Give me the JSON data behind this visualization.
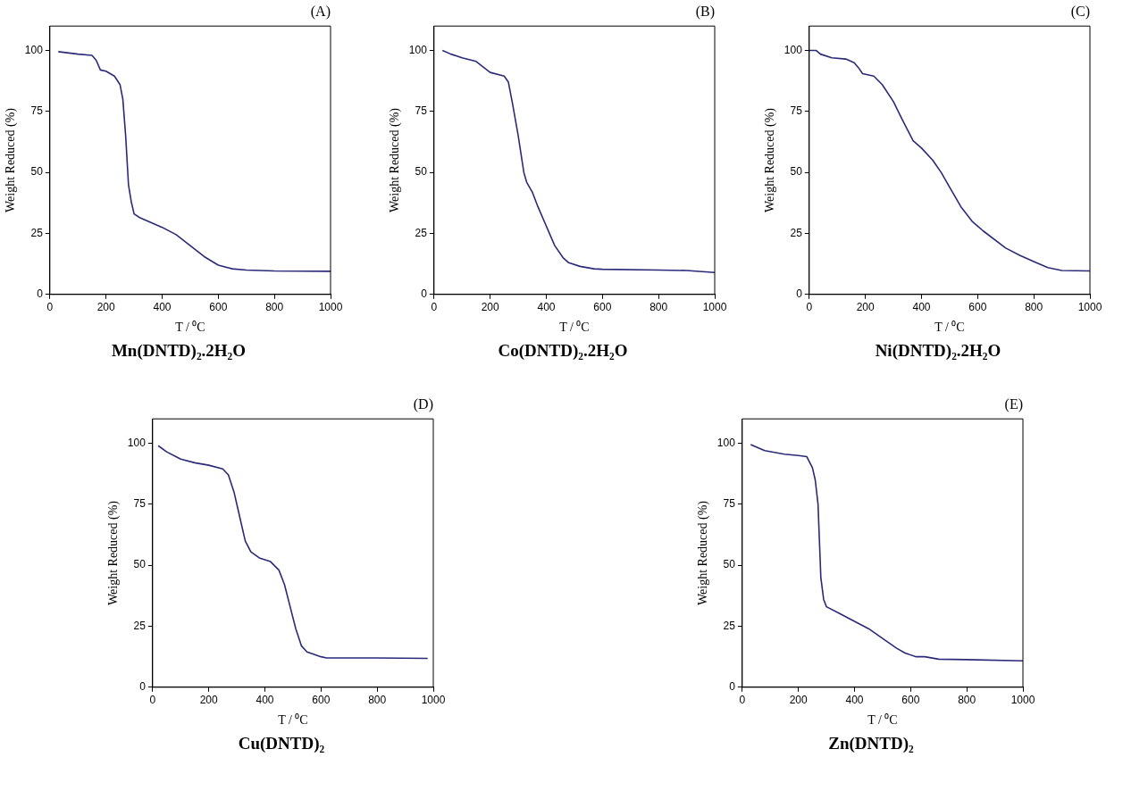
{
  "chart_data": [
    {
      "type": "line",
      "title": "(A)",
      "subtitle": "Mn(DNTD)₂.2H₂O",
      "xlabel": "T / ⁰C",
      "ylabel": "Weight Reduced (%)",
      "xlim": [
        0,
        1000
      ],
      "xticks": [
        0,
        200,
        400,
        600,
        800,
        1000
      ],
      "ylim": [
        0,
        110
      ],
      "yticks": [
        0,
        25,
        50,
        75,
        100
      ],
      "legend": false,
      "series": [
        {
          "color": "#2a2a7a",
          "x": [
            30,
            100,
            150,
            165,
            180,
            200,
            230,
            250,
            260,
            270,
            280,
            290,
            300,
            320,
            400,
            450,
            500,
            550,
            600,
            650,
            700,
            800,
            1000
          ],
          "values": [
            99.5,
            98.5,
            98,
            96,
            92,
            91.5,
            89.5,
            86,
            80,
            65,
            45,
            38,
            33,
            31.5,
            27.5,
            24.5,
            20,
            15.5,
            12,
            10.5,
            10,
            9.6,
            9.5
          ]
        }
      ]
    },
    {
      "type": "line",
      "title": "(B)",
      "subtitle": "Co(DNTD)₂.2H₂O",
      "xlabel": "T / ⁰C",
      "ylabel": "Weight Reduced (%)",
      "xlim": [
        0,
        1000
      ],
      "xticks": [
        0,
        200,
        400,
        600,
        800,
        1000
      ],
      "ylim": [
        0,
        110
      ],
      "yticks": [
        0,
        25,
        50,
        75,
        100
      ],
      "legend": false,
      "series": [
        {
          "color": "#2a2a7a",
          "x": [
            30,
            60,
            100,
            150,
            200,
            250,
            265,
            280,
            300,
            320,
            330,
            350,
            370,
            400,
            430,
            460,
            480,
            520,
            570,
            600,
            800,
            900,
            1000
          ],
          "values": [
            100,
            98.5,
            97,
            95.5,
            91,
            89.5,
            87,
            78,
            65,
            50,
            46,
            42,
            36,
            28,
            20,
            15,
            13,
            11.5,
            10.5,
            10.3,
            10,
            9.8,
            9
          ]
        }
      ]
    },
    {
      "type": "line",
      "title": "(C)",
      "subtitle": "Ni(DNTD)₂.2H₂O",
      "xlabel": "T / ⁰C",
      "ylabel": "Weight Reduced (%)",
      "xlim": [
        0,
        1000
      ],
      "xticks": [
        0,
        200,
        400,
        600,
        800,
        1000
      ],
      "ylim": [
        0,
        110
      ],
      "yticks": [
        0,
        25,
        50,
        75,
        100
      ],
      "legend": false,
      "series": [
        {
          "color": "#2a2a7a",
          "x": [
            0,
            25,
            40,
            80,
            130,
            160,
            175,
            190,
            230,
            260,
            300,
            330,
            370,
            400,
            440,
            470,
            500,
            540,
            580,
            620,
            700,
            750,
            800,
            850,
            900,
            1000
          ],
          "values": [
            100,
            100,
            98.5,
            97,
            96.5,
            95,
            93,
            90.5,
            89.5,
            86,
            79,
            72,
            63,
            60,
            55,
            50,
            44,
            36,
            30,
            26,
            19,
            16,
            13.5,
            11,
            9.8,
            9.6
          ]
        }
      ]
    },
    {
      "type": "line",
      "title": "(D)",
      "subtitle": "Cu(DNTD)₂",
      "xlabel": "T / ⁰C",
      "ylabel": "Weight Reduced (%)",
      "xlim": [
        0,
        1000
      ],
      "xticks": [
        0,
        200,
        400,
        600,
        800,
        1000
      ],
      "ylim": [
        0,
        110
      ],
      "yticks": [
        0,
        25,
        50,
        75,
        100
      ],
      "legend": false,
      "series": [
        {
          "color": "#2a2a7a",
          "x": [
            20,
            50,
            100,
            150,
            200,
            250,
            270,
            290,
            310,
            330,
            350,
            380,
            420,
            450,
            470,
            490,
            510,
            530,
            550,
            600,
            620,
            800,
            980
          ],
          "values": [
            99,
            96.5,
            93.5,
            92,
            91,
            89.5,
            87,
            80,
            70,
            60,
            55.5,
            53,
            51.5,
            48,
            42,
            33,
            24,
            17,
            14.5,
            12.5,
            12,
            12,
            11.8
          ]
        }
      ]
    },
    {
      "type": "line",
      "title": "(E)",
      "subtitle": "Zn(DNTD)₂",
      "xlabel": "T / ⁰C",
      "ylabel": "Weight Reduced (%)",
      "xlim": [
        0,
        1000
      ],
      "xticks": [
        0,
        200,
        400,
        600,
        800,
        1000
      ],
      "ylim": [
        0,
        110
      ],
      "yticks": [
        0,
        25,
        50,
        75,
        100
      ],
      "legend": false,
      "series": [
        {
          "color": "#2a2a7a",
          "x": [
            30,
            80,
            150,
            200,
            230,
            250,
            260,
            270,
            275,
            280,
            290,
            300,
            350,
            400,
            450,
            500,
            550,
            580,
            620,
            650,
            700,
            800,
            1000
          ],
          "values": [
            99.5,
            97,
            95.5,
            95,
            94.5,
            90,
            85,
            75,
            60,
            45,
            36,
            33,
            30,
            27,
            24,
            20,
            16,
            14,
            12.5,
            12.5,
            11.5,
            11.3,
            10.8
          ]
        }
      ]
    }
  ]
}
